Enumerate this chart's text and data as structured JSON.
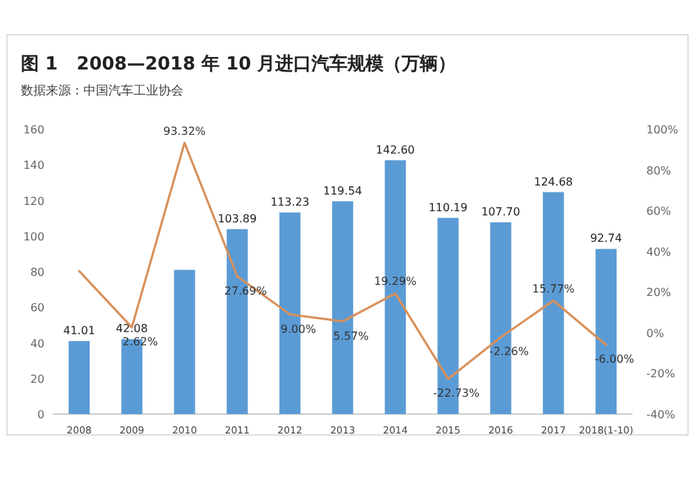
{
  "chart_data": {
    "type": "bar",
    "title": "图 1   2008—2018 年 10 月进口汽车规模（万辆）",
    "annotations": [
      "数据来源：中国汽车工业协会"
    ],
    "categories": [
      "2008",
      "2009",
      "2010",
      "2011",
      "2012",
      "2013",
      "2014",
      "2015",
      "2016",
      "2017",
      "2018(1-10)"
    ],
    "ylim": [
      0,
      160
    ],
    "yticks": [
      0,
      20,
      40,
      60,
      80,
      100,
      120,
      140,
      160
    ],
    "y2lim": [
      -40,
      100
    ],
    "y2ticks": [
      {
        "value": -40,
        "label": "-40%"
      },
      {
        "value": -20,
        "label": "-20%"
      },
      {
        "value": 0,
        "label": "0%"
      },
      {
        "value": 20,
        "label": "20%"
      },
      {
        "value": 40,
        "label": "40%"
      },
      {
        "value": 60,
        "label": "60%"
      },
      {
        "value": 80,
        "label": "80%"
      },
      {
        "value": 100,
        "label": "100%"
      }
    ],
    "grid": false,
    "series": [
      {
        "color": "#5b9bd5",
        "values": [
          41.01,
          42.08,
          81,
          103.89,
          113.23,
          119.54,
          142.6,
          110.19,
          107.7,
          124.68,
          92.74
        ],
        "value_labels": [
          "41.01",
          "42.08",
          null,
          "103.89",
          "113.23",
          "119.54",
          "142.60",
          "110.19",
          "107.70",
          "124.68",
          "92.74"
        ]
      },
      {
        "type": "line",
        "axis": "y2",
        "color": "#d9905a",
        "marker": "none",
        "line_style": "solid",
        "values": [
          30.3,
          2.62,
          93.32,
          27.69,
          9.0,
          5.57,
          19.29,
          -22.73,
          -2.26,
          15.77,
          -6.0
        ],
        "value_labels": [
          null,
          "2.62%",
          "93.32%",
          "27.69%",
          "9.00%",
          "5.57%",
          "19.29%",
          "-22.73%",
          "-2.26%",
          "15.77%",
          "-6.00%"
        ]
      }
    ]
  }
}
